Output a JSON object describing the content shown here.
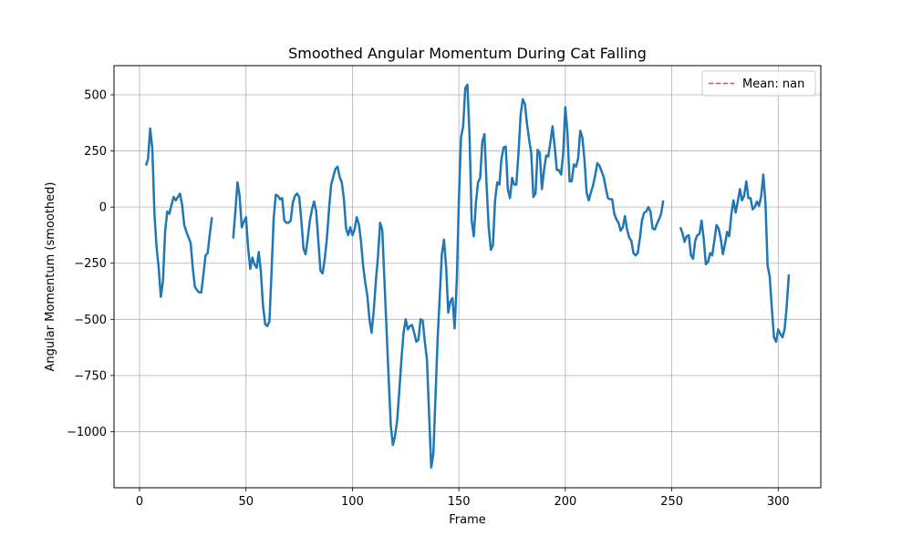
{
  "chart_data": {
    "type": "line",
    "title": "Smoothed Angular Momentum During Cat Falling",
    "xlabel": "Frame",
    "ylabel": "Angular Momentum (smoothed)",
    "xlim": [
      -12,
      320
    ],
    "ylim": [
      -1250,
      630
    ],
    "xticks": [
      0,
      50,
      100,
      150,
      200,
      250,
      300
    ],
    "yticks": [
      500,
      250,
      0,
      -250,
      -500,
      -750,
      -1000
    ],
    "ytick_labels": [
      "500",
      "250",
      "0",
      "−250",
      "−500",
      "−750",
      "−1000"
    ],
    "grid": true,
    "legend": {
      "position": "top-right",
      "entries": [
        {
          "label": "Mean: nan",
          "color": "#ff0000",
          "style": "dashed"
        }
      ]
    },
    "series": [
      {
        "color": "#1f77b4",
        "segments": [
          [
            [
              3,
              185
            ],
            [
              4,
              215
            ],
            [
              5,
              350
            ],
            [
              6,
              260
            ],
            [
              7,
              -30
            ],
            [
              8,
              -180
            ],
            [
              9,
              -270
            ],
            [
              10,
              -400
            ],
            [
              11,
              -330
            ],
            [
              12,
              -110
            ],
            [
              13,
              -20
            ],
            [
              14,
              -30
            ],
            [
              15,
              10
            ],
            [
              16,
              45
            ],
            [
              17,
              30
            ],
            [
              18,
              45
            ],
            [
              19,
              60
            ],
            [
              20,
              10
            ],
            [
              21,
              -80
            ],
            [
              22,
              -110
            ],
            [
              23,
              -135
            ],
            [
              24,
              -160
            ],
            [
              25,
              -270
            ],
            [
              26,
              -355
            ],
            [
              27,
              -370
            ],
            [
              28,
              -380
            ],
            [
              29,
              -380
            ],
            [
              30,
              -300
            ],
            [
              31,
              -215
            ],
            [
              32,
              -205
            ],
            [
              33,
              -120
            ],
            [
              34,
              -45
            ]
          ],
          [
            [
              44,
              -140
            ],
            [
              45,
              -20
            ],
            [
              46,
              110
            ],
            [
              47,
              50
            ],
            [
              48,
              -90
            ],
            [
              49,
              -65
            ],
            [
              50,
              -45
            ],
            [
              51,
              -180
            ],
            [
              52,
              -275
            ],
            [
              53,
              -225
            ],
            [
              54,
              -255
            ],
            [
              55,
              -270
            ],
            [
              56,
              -200
            ],
            [
              57,
              -290
            ],
            [
              58,
              -440
            ],
            [
              59,
              -520
            ],
            [
              60,
              -530
            ],
            [
              61,
              -510
            ],
            [
              62,
              -290
            ],
            [
              63,
              -50
            ],
            [
              64,
              55
            ],
            [
              65,
              50
            ],
            [
              66,
              35
            ],
            [
              67,
              40
            ],
            [
              68,
              -60
            ],
            [
              69,
              -70
            ],
            [
              70,
              -70
            ],
            [
              71,
              -60
            ],
            [
              72,
              20
            ],
            [
              73,
              50
            ],
            [
              74,
              60
            ],
            [
              75,
              45
            ],
            [
              76,
              -60
            ],
            [
              77,
              -185
            ],
            [
              78,
              -210
            ],
            [
              79,
              -140
            ],
            [
              80,
              -60
            ],
            [
              81,
              -10
            ],
            [
              82,
              25
            ],
            [
              83,
              -20
            ],
            [
              84,
              -155
            ],
            [
              85,
              -285
            ],
            [
              86,
              -295
            ],
            [
              87,
              -230
            ],
            [
              88,
              -140
            ],
            [
              89,
              -10
            ],
            [
              90,
              100
            ],
            [
              91,
              135
            ],
            [
              92,
              170
            ],
            [
              93,
              180
            ],
            [
              94,
              135
            ],
            [
              95,
              110
            ],
            [
              96,
              35
            ],
            [
              97,
              -95
            ],
            [
              98,
              -125
            ],
            [
              99,
              -90
            ],
            [
              100,
              -125
            ],
            [
              101,
              -100
            ],
            [
              102,
              -45
            ],
            [
              103,
              -75
            ],
            [
              104,
              -150
            ],
            [
              105,
              -260
            ],
            [
              106,
              -335
            ],
            [
              107,
              -395
            ],
            [
              108,
              -500
            ],
            [
              109,
              -560
            ],
            [
              110,
              -460
            ],
            [
              111,
              -330
            ],
            [
              112,
              -220
            ],
            [
              113,
              -70
            ],
            [
              114,
              -100
            ],
            [
              115,
              -320
            ],
            [
              116,
              -540
            ],
            [
              117,
              -760
            ],
            [
              118,
              -970
            ],
            [
              119,
              -1060
            ],
            [
              120,
              -1020
            ],
            [
              121,
              -950
            ],
            [
              122,
              -820
            ],
            [
              123,
              -680
            ],
            [
              124,
              -560
            ],
            [
              125,
              -500
            ],
            [
              126,
              -545
            ],
            [
              127,
              -530
            ],
            [
              128,
              -525
            ],
            [
              129,
              -560
            ],
            [
              130,
              -600
            ],
            [
              131,
              -590
            ],
            [
              132,
              -500
            ],
            [
              133,
              -505
            ],
            [
              134,
              -600
            ],
            [
              135,
              -680
            ],
            [
              136,
              -920
            ],
            [
              137,
              -1160
            ],
            [
              138,
              -1100
            ],
            [
              139,
              -850
            ],
            [
              140,
              -590
            ],
            [
              141,
              -400
            ],
            [
              142,
              -210
            ],
            [
              143,
              -145
            ],
            [
              144,
              -265
            ],
            [
              145,
              -470
            ],
            [
              146,
              -420
            ],
            [
              147,
              -405
            ],
            [
              148,
              -540
            ],
            [
              149,
              -330
            ],
            [
              150,
              30
            ],
            [
              151,
              310
            ],
            [
              152,
              360
            ],
            [
              153,
              530
            ],
            [
              154,
              545
            ],
            [
              155,
              320
            ],
            [
              156,
              -60
            ],
            [
              157,
              -130
            ],
            [
              158,
              20
            ],
            [
              159,
              110
            ],
            [
              160,
              130
            ],
            [
              161,
              290
            ],
            [
              162,
              325
            ],
            [
              163,
              100
            ],
            [
              164,
              -90
            ],
            [
              165,
              -190
            ],
            [
              166,
              -170
            ],
            [
              167,
              30
            ],
            [
              168,
              110
            ],
            [
              169,
              100
            ],
            [
              170,
              215
            ],
            [
              171,
              265
            ],
            [
              172,
              270
            ],
            [
              173,
              80
            ],
            [
              174,
              40
            ],
            [
              175,
              130
            ],
            [
              176,
              100
            ],
            [
              177,
              100
            ],
            [
              178,
              240
            ],
            [
              179,
              410
            ],
            [
              180,
              480
            ],
            [
              181,
              460
            ],
            [
              182,
              370
            ],
            [
              183,
              300
            ],
            [
              184,
              240
            ],
            [
              185,
              45
            ],
            [
              186,
              60
            ],
            [
              187,
              255
            ],
            [
              188,
              240
            ],
            [
              189,
              80
            ],
            [
              190,
              165
            ],
            [
              191,
              230
            ],
            [
              192,
              225
            ],
            [
              193,
              290
            ],
            [
              194,
              360
            ],
            [
              195,
              270
            ],
            [
              196,
              165
            ],
            [
              197,
              165
            ],
            [
              198,
              145
            ],
            [
              199,
              240
            ],
            [
              200,
              445
            ],
            [
              201,
              330
            ],
            [
              202,
              115
            ],
            [
              203,
              115
            ],
            [
              204,
              190
            ],
            [
              205,
              180
            ],
            [
              206,
              215
            ],
            [
              207,
              340
            ],
            [
              208,
              310
            ],
            [
              209,
              210
            ],
            [
              210,
              65
            ],
            [
              211,
              30
            ],
            [
              212,
              65
            ],
            [
              213,
              95
            ],
            [
              214,
              140
            ],
            [
              215,
              195
            ],
            [
              216,
              185
            ],
            [
              217,
              160
            ],
            [
              218,
              135
            ],
            [
              219,
              85
            ],
            [
              220,
              40
            ],
            [
              221,
              35
            ],
            [
              222,
              35
            ],
            [
              223,
              -30
            ],
            [
              224,
              -55
            ],
            [
              225,
              -70
            ],
            [
              226,
              -105
            ],
            [
              227,
              -90
            ],
            [
              228,
              -40
            ],
            [
              229,
              -100
            ],
            [
              230,
              -135
            ],
            [
              231,
              -150
            ],
            [
              232,
              -205
            ],
            [
              233,
              -215
            ],
            [
              234,
              -205
            ],
            [
              235,
              -140
            ],
            [
              236,
              -60
            ],
            [
              237,
              -25
            ],
            [
              238,
              -20
            ],
            [
              239,
              0
            ],
            [
              240,
              -20
            ],
            [
              241,
              -95
            ],
            [
              242,
              -100
            ],
            [
              243,
              -75
            ],
            [
              244,
              -55
            ],
            [
              245,
              -30
            ],
            [
              246,
              30
            ]
          ],
          [
            [
              254,
              -90
            ],
            [
              255,
              -115
            ],
            [
              256,
              -155
            ],
            [
              257,
              -130
            ],
            [
              258,
              -125
            ],
            [
              259,
              -215
            ],
            [
              260,
              -230
            ],
            [
              261,
              -150
            ],
            [
              262,
              -125
            ],
            [
              263,
              -120
            ],
            [
              264,
              -60
            ],
            [
              265,
              -140
            ],
            [
              266,
              -255
            ],
            [
              267,
              -245
            ],
            [
              268,
              -205
            ],
            [
              269,
              -215
            ],
            [
              270,
              -150
            ],
            [
              271,
              -80
            ],
            [
              272,
              -95
            ],
            [
              273,
              -140
            ],
            [
              274,
              -210
            ],
            [
              275,
              -165
            ],
            [
              276,
              -110
            ],
            [
              277,
              -130
            ],
            [
              278,
              -30
            ],
            [
              279,
              30
            ],
            [
              280,
              -25
            ],
            [
              281,
              25
            ],
            [
              282,
              80
            ],
            [
              283,
              30
            ],
            [
              284,
              50
            ],
            [
              285,
              115
            ],
            [
              286,
              40
            ],
            [
              287,
              40
            ],
            [
              288,
              -10
            ],
            [
              289,
              0
            ],
            [
              290,
              25
            ],
            [
              291,
              5
            ],
            [
              292,
              50
            ],
            [
              293,
              145
            ],
            [
              294,
              20
            ],
            [
              295,
              -260
            ],
            [
              296,
              -310
            ],
            [
              297,
              -450
            ],
            [
              298,
              -580
            ],
            [
              299,
              -600
            ],
            [
              300,
              -545
            ],
            [
              301,
              -565
            ],
            [
              302,
              -580
            ],
            [
              303,
              -545
            ],
            [
              304,
              -440
            ],
            [
              305,
              -300
            ]
          ]
        ]
      }
    ]
  }
}
